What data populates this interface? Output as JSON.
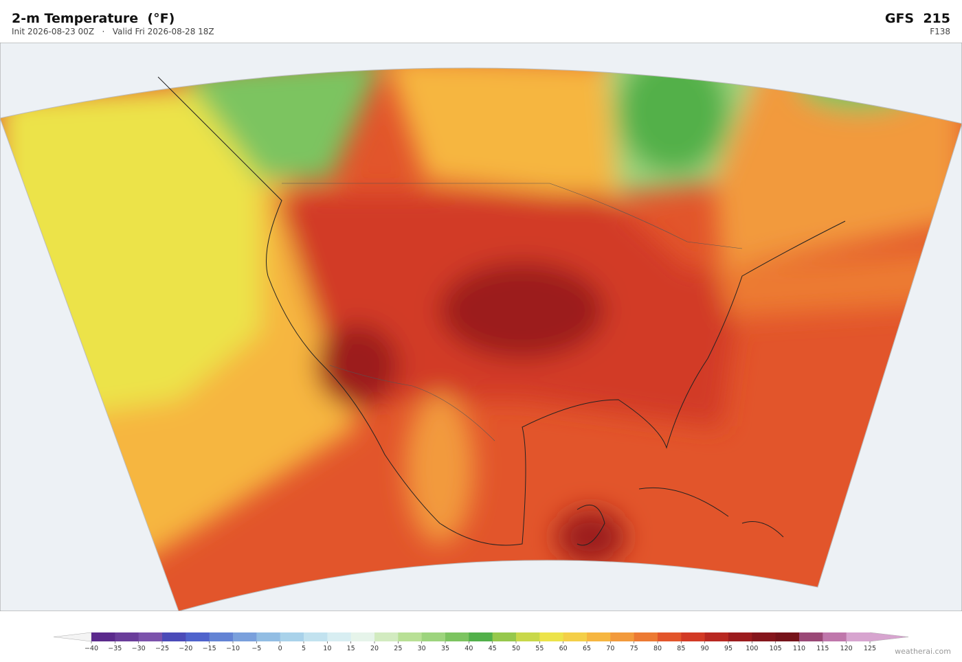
{
  "header": {
    "title": "2-m Temperature  (°F)",
    "subtitle": "Init 2026-08-23 00Z   ·   Valid Fri 2026-08-28 18Z",
    "model": "GFS  215",
    "forecast_hour": "F138"
  },
  "colorbar": {
    "ticks": [
      {
        "value": -40,
        "label": "−40"
      },
      {
        "value": -35,
        "label": "−35"
      },
      {
        "value": -30,
        "label": "−30"
      },
      {
        "value": -25,
        "label": "−25"
      },
      {
        "value": -20,
        "label": "−20"
      },
      {
        "value": -15,
        "label": "−15"
      },
      {
        "value": -10,
        "label": "−10"
      },
      {
        "value": -5,
        "label": "−5"
      },
      0,
      5,
      10,
      15,
      20,
      25,
      30,
      35,
      40,
      45,
      50,
      55,
      60,
      65,
      70,
      75,
      80,
      85,
      90,
      95,
      100,
      105,
      110,
      115,
      120,
      125
    ],
    "colors": [
      "#5b2a8c",
      "#6a3d9a",
      "#7b52ab",
      "#4b4bb8",
      "#4f63cc",
      "#6383d4",
      "#7aa0dc",
      "#92bde3",
      "#a9d2ea",
      "#c2e2ef",
      "#d8eef2",
      "#e6f4ea",
      "#d2ebc0",
      "#b8e095",
      "#9dd47d",
      "#7cc460",
      "#52b04a",
      "#96c84c",
      "#c8d84a",
      "#ece34a",
      "#f4cf48",
      "#f6b640",
      "#f29a3c",
      "#ec7a33",
      "#e2552b",
      "#d23a25",
      "#b82821",
      "#9c1c1e",
      "#85161c",
      "#76131a",
      "#9a4876",
      "#bf77ab",
      "#d7a4cf"
    ],
    "under_color": "#f4f4f4",
    "over_color": "#d7a4cf"
  },
  "watermark": "weatherai.com"
}
